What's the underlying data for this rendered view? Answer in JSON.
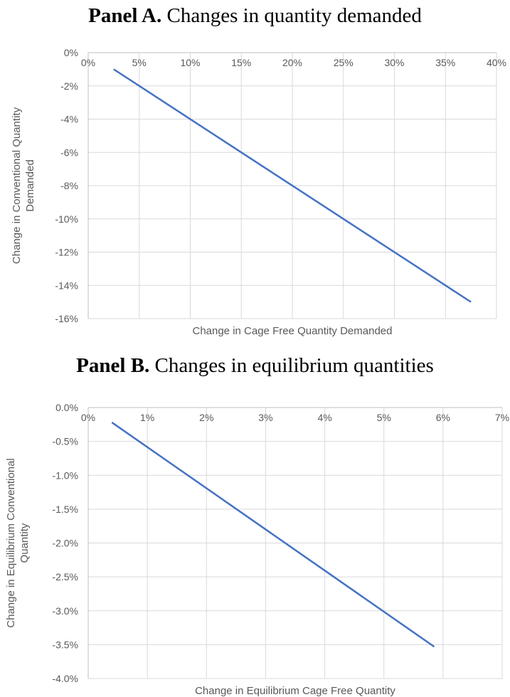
{
  "chart_data": [
    {
      "type": "line",
      "title_bold": "Panel A.",
      "title": "Changes in quantity demanded",
      "xlabel": "Change in Cage Free Quantity Demanded",
      "ylabel": [
        "Change in Conventional Quantity",
        "Demanded"
      ],
      "xlim": [
        0,
        40
      ],
      "ylim": [
        -16,
        0
      ],
      "x_ticks": [
        "0%",
        "5%",
        "10%",
        "15%",
        "20%",
        "25%",
        "30%",
        "35%",
        "40%"
      ],
      "y_ticks": [
        "0%",
        "-2%",
        "-4%",
        "-6%",
        "-8%",
        "-10%",
        "-12%",
        "-14%",
        "-16%"
      ],
      "grid": true,
      "color": "#4472C4",
      "series": [
        {
          "x": [
            2.5,
            37.5
          ],
          "y": [
            -1.0,
            -15.0
          ]
        }
      ]
    },
    {
      "type": "line",
      "title_bold": "Panel B.",
      "title": "Changes in equilibrium quantities",
      "xlabel": "Change in Equilibrium Cage Free Quantity",
      "ylabel": [
        "Change in Equilibrium Conventional",
        "Quantity"
      ],
      "xlim": [
        0,
        7
      ],
      "ylim": [
        -4.0,
        0
      ],
      "x_ticks": [
        "0%",
        "1%",
        "2%",
        "3%",
        "4%",
        "5%",
        "6%",
        "7%"
      ],
      "y_ticks": [
        "0.0%",
        "-0.5%",
        "-1.0%",
        "-1.5%",
        "-2.0%",
        "-2.5%",
        "-3.0%",
        "-3.5%",
        "-4.0%"
      ],
      "grid": true,
      "color": "#4472C4",
      "series": [
        {
          "x": [
            0.4,
            5.85
          ],
          "y": [
            -0.22,
            -3.53
          ]
        }
      ]
    }
  ]
}
